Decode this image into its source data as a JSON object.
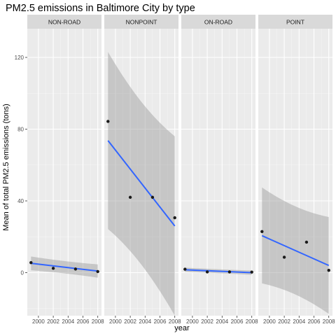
{
  "chart_data": {
    "type": "scatter",
    "title": "PM2.5 emissions in Baltimore City by type",
    "xlabel": "year",
    "ylabel": "Mean of total PM2.5 emissions (tons)",
    "xlim": [
      1998.5,
      2008.5
    ],
    "ylim": [
      -24,
      136
    ],
    "x_ticks": [
      2000,
      2002,
      2004,
      2006,
      2008
    ],
    "y_ticks": [
      0,
      40,
      80,
      120
    ],
    "grid": true,
    "smoother": "linear fit with confidence band",
    "colors": {
      "panel_bg": "#ebebeb",
      "grid_major": "#ffffff",
      "strip_bg": "#d9d9d9",
      "point": "#1a1a1a",
      "fit_line": "#3366ff",
      "band": "#999999"
    },
    "facets": [
      {
        "name": "NON-ROAD",
        "x": [
          1999,
          2002,
          2005,
          2008
        ],
        "y": [
          5.6,
          2.4,
          2.0,
          0.6
        ],
        "fit": [
          5.2,
          0.9
        ],
        "band_lower": [
          1.3,
          -2.8
        ],
        "band_upper": [
          9.0,
          4.6
        ]
      },
      {
        "name": "NONPOINT",
        "x": [
          1999,
          2002,
          2005,
          2008
        ],
        "y": [
          84.3,
          42.0,
          42.0,
          30.6
        ],
        "fit": [
          73.6,
          26.0
        ],
        "band_lower": [
          24.3,
          -24.0
        ],
        "band_upper": [
          123.0,
          76.0
        ]
      },
      {
        "name": "ON-ROAD",
        "x": [
          1999,
          2002,
          2005,
          2008
        ],
        "y": [
          1.9,
          0.4,
          0.4,
          0.3
        ],
        "fit": [
          1.6,
          0.0
        ],
        "band_lower": [
          0.4,
          -1.2
        ],
        "band_upper": [
          2.8,
          1.2
        ]
      },
      {
        "name": "POINT",
        "x": [
          1999,
          2002,
          2005,
          2008
        ],
        "y": [
          22.9,
          8.6,
          17.0,
          1.3
        ],
        "fit": [
          20.6,
          4.0
        ],
        "band_lower": [
          -6.0,
          -23.0
        ],
        "band_upper": [
          47.5,
          31.0
        ]
      }
    ]
  }
}
